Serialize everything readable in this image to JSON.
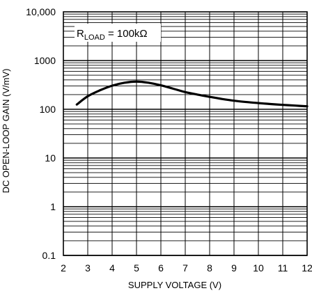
{
  "chart_data": {
    "type": "line",
    "title": "",
    "xlabel": "SUPPLY VOLTAGE (V)",
    "ylabel": "DC OPEN-LOOP GAIN (V/mV)",
    "xlim": [
      2,
      12
    ],
    "ylim": [
      0.1,
      10000
    ],
    "y_scale": "log",
    "grid": true,
    "x_ticks": [
      "2",
      "3",
      "4",
      "5",
      "6",
      "7",
      "8",
      "9",
      "10",
      "11",
      "12"
    ],
    "y_ticks": [
      "0.1",
      "1",
      "10",
      "100",
      "1000",
      "10,000"
    ],
    "annotation": {
      "main": "R",
      "subscript": "LOAD",
      "rest": " = 100kΩ"
    },
    "series": [
      {
        "x": [
          2.55,
          3.0,
          3.5,
          4.0,
          4.5,
          5.0,
          5.5,
          6.0,
          6.5,
          7.0,
          7.5,
          8.0,
          8.5,
          9.0,
          9.5,
          10.0,
          10.5,
          11.0,
          11.5,
          12.0
        ],
        "y": [
          125,
          185,
          245,
          305,
          350,
          370,
          350,
          310,
          265,
          225,
          200,
          180,
          163,
          150,
          141,
          134,
          128,
          123,
          119,
          115
        ]
      }
    ]
  }
}
